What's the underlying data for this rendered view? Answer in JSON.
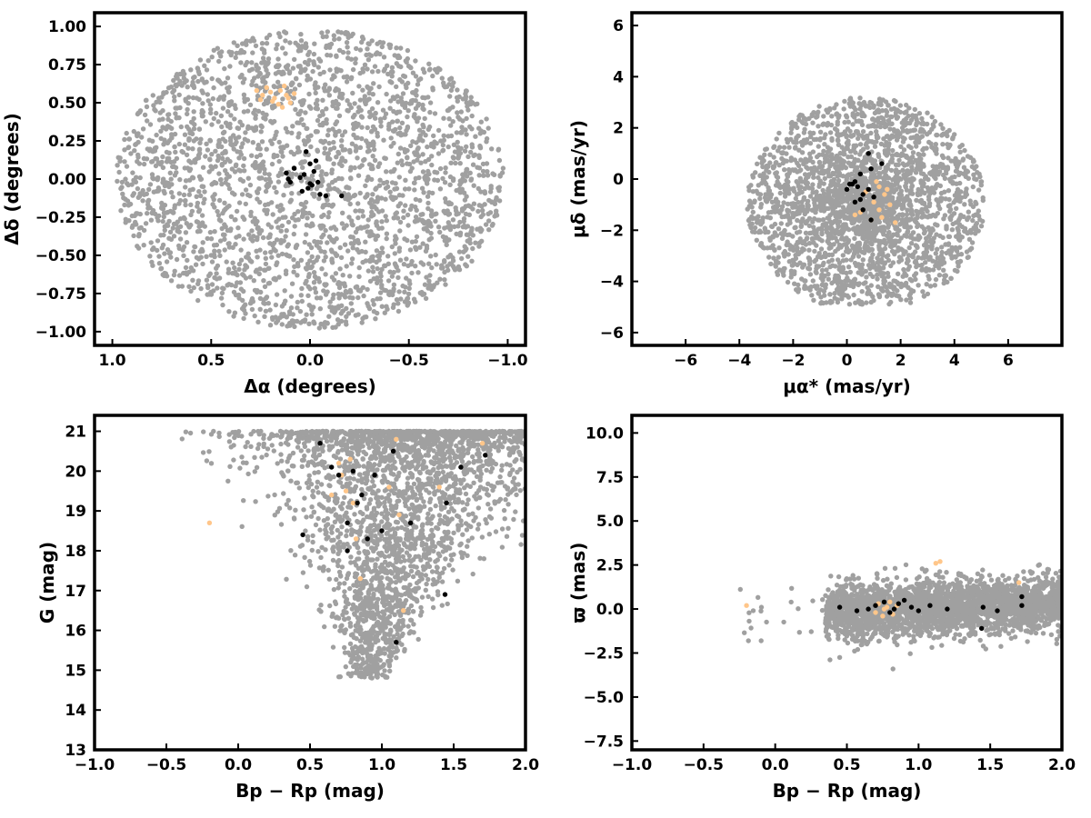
{
  "chart_data": [
    {
      "id": "pos",
      "type": "scatter",
      "xlabel": "Δα (degrees)",
      "ylabel": "Δδ (degrees)",
      "xlim": [
        1.09,
        -1.09
      ],
      "ylim": [
        -1.09,
        1.09
      ],
      "xticks": [
        1.0,
        0.5,
        0.0,
        -0.5,
        -1.0
      ],
      "xtick_labels": [
        "1.0",
        "0.5",
        "0.0",
        "−0.5",
        "−1.0"
      ],
      "yticks": [
        -1.0,
        -0.75,
        -0.5,
        -0.25,
        0.0,
        0.25,
        0.5,
        0.75,
        1.0
      ],
      "ytick_labels": [
        "−1.00",
        "−0.75",
        "−0.50",
        "−0.25",
        "0.00",
        "0.25",
        "0.50",
        "0.75",
        "1.00"
      ],
      "background": {
        "color": "#a0a0a0",
        "count": 2600,
        "shape": "disk",
        "center": [
          0,
          0
        ],
        "radius": 0.98,
        "seed": 11
      },
      "series": [
        {
          "color": "#ffc68a",
          "points": [
            [
              0.12,
              0.55
            ],
            [
              0.1,
              0.5
            ],
            [
              0.15,
              0.58
            ],
            [
              0.18,
              0.53
            ],
            [
              0.22,
              0.6
            ],
            [
              0.25,
              0.52
            ],
            [
              0.08,
              0.56
            ],
            [
              0.13,
              0.61
            ],
            [
              0.2,
              0.57
            ],
            [
              0.16,
              0.49
            ],
            [
              0.24,
              0.55
            ],
            [
              0.11,
              0.53
            ],
            [
              0.19,
              0.51
            ],
            [
              0.27,
              0.58
            ],
            [
              0.14,
              0.47
            ]
          ]
        },
        {
          "color": "#000000",
          "points": [
            [
              0.02,
              0.18
            ],
            [
              -0.03,
              0.12
            ],
            [
              0.0,
              0.1
            ],
            [
              -0.02,
              0.05
            ],
            [
              0.03,
              0.03
            ],
            [
              0.05,
              0.01
            ],
            [
              0.1,
              -0.02
            ],
            [
              0.12,
              0.04
            ],
            [
              0.08,
              0.07
            ],
            [
              -0.01,
              -0.04
            ],
            [
              0.01,
              -0.06
            ],
            [
              0.04,
              -0.08
            ],
            [
              -0.05,
              -0.1
            ],
            [
              -0.08,
              -0.11
            ],
            [
              -0.16,
              -0.11
            ],
            [
              0.11,
              0.0
            ],
            [
              -0.04,
              -0.02
            ],
            [
              0.0,
              -0.03
            ]
          ]
        }
      ]
    },
    {
      "id": "pm",
      "type": "scatter",
      "xlabel": "μα* (mas/yr)",
      "ylabel": "μδ (mas/yr)",
      "xlim": [
        -8,
        8
      ],
      "ylim": [
        -6.5,
        6.5
      ],
      "xticks": [
        -6,
        -4,
        -2,
        0,
        2,
        4,
        6
      ],
      "xtick_labels": [
        "−6",
        "−4",
        "−2",
        "0",
        "2",
        "4",
        "6"
      ],
      "yticks": [
        -6,
        -4,
        -2,
        0,
        2,
        4,
        6
      ],
      "ytick_labels": [
        "−6",
        "−4",
        "−2",
        "0",
        "2",
        "4",
        "6"
      ],
      "background": {
        "color": "#a0a0a0",
        "count": 2600,
        "shape": "pm",
        "center": [
          0.7,
          -1.0
        ],
        "radius": 4.2,
        "seed": 23
      },
      "series": [
        {
          "color": "#ffc68a",
          "points": [
            [
              1.2,
              -0.3
            ],
            [
              1.4,
              -0.6
            ],
            [
              1.6,
              -1.0
            ],
            [
              1.3,
              -1.5
            ],
            [
              0.9,
              -1.6
            ],
            [
              0.5,
              -1.3
            ],
            [
              1.1,
              -0.1
            ],
            [
              1.5,
              -0.4
            ],
            [
              1.0,
              -0.9
            ],
            [
              0.3,
              -1.4
            ],
            [
              1.8,
              -1.7
            ],
            [
              1.2,
              -1.2
            ],
            [
              0.7,
              -0.5
            ]
          ]
        },
        {
          "color": "#000000",
          "points": [
            [
              0.8,
              1.0
            ],
            [
              0.9,
              0.4
            ],
            [
              0.5,
              0.2
            ],
            [
              0.3,
              -0.1
            ],
            [
              0.1,
              -0.2
            ],
            [
              0.0,
              -0.4
            ],
            [
              0.4,
              -0.3
            ],
            [
              0.6,
              -0.6
            ],
            [
              0.5,
              -0.8
            ],
            [
              0.3,
              -0.9
            ],
            [
              0.6,
              -1.2
            ],
            [
              0.9,
              -1.6
            ],
            [
              1.3,
              0.6
            ],
            [
              0.8,
              -0.4
            ],
            [
              1.0,
              -0.7
            ],
            [
              0.2,
              -0.2
            ]
          ]
        }
      ]
    },
    {
      "id": "cmd",
      "type": "scatter",
      "xlabel": "Bp − Rp (mag)",
      "ylabel": "G (mag)",
      "xlim": [
        -1.0,
        2.0
      ],
      "ylim": [
        13.0,
        21.4
      ],
      "xticks": [
        -1.0,
        -0.5,
        0.0,
        0.5,
        1.0,
        1.5,
        2.0
      ],
      "xtick_labels": [
        "−1.0",
        "−0.5",
        "0.0",
        "0.5",
        "1.0",
        "1.5",
        "2.0"
      ],
      "yticks": [
        13,
        14,
        15,
        16,
        17,
        18,
        19,
        20,
        21
      ],
      "ytick_labels": [
        "13",
        "14",
        "15",
        "16",
        "17",
        "18",
        "19",
        "20",
        "21"
      ],
      "background": {
        "color": "#a0a0a0",
        "count": 2600,
        "shape": "cmd",
        "seed": 37
      },
      "series": [
        {
          "color": "#ffc68a",
          "points": [
            [
              -0.2,
              18.7
            ],
            [
              0.65,
              19.4
            ],
            [
              0.7,
              20.2
            ],
            [
              0.72,
              19.9
            ],
            [
              0.75,
              19.5
            ],
            [
              0.78,
              20.3
            ],
            [
              0.8,
              19.2
            ],
            [
              0.82,
              18.3
            ],
            [
              0.85,
              17.3
            ],
            [
              1.05,
              19.6
            ],
            [
              1.1,
              20.8
            ],
            [
              1.12,
              18.9
            ],
            [
              1.15,
              16.5
            ],
            [
              1.4,
              19.6
            ],
            [
              1.7,
              20.7
            ]
          ]
        },
        {
          "color": "#000000",
          "points": [
            [
              0.45,
              18.4
            ],
            [
              0.57,
              20.7
            ],
            [
              0.65,
              20.1
            ],
            [
              0.7,
              19.9
            ],
            [
              0.76,
              18.7
            ],
            [
              0.76,
              18.0
            ],
            [
              0.8,
              20.0
            ],
            [
              0.83,
              19.2
            ],
            [
              0.86,
              19.4
            ],
            [
              0.9,
              18.3
            ],
            [
              0.95,
              19.9
            ],
            [
              1.0,
              18.5
            ],
            [
              1.08,
              20.5
            ],
            [
              1.1,
              15.7
            ],
            [
              1.2,
              18.7
            ],
            [
              1.44,
              16.9
            ],
            [
              1.45,
              19.2
            ],
            [
              1.55,
              20.1
            ],
            [
              1.72,
              20.4
            ]
          ]
        }
      ]
    },
    {
      "id": "plx",
      "type": "scatter",
      "xlabel": "Bp − Rp (mag)",
      "ylabel": "ϖ (mas)",
      "xlim": [
        -1.0,
        2.0
      ],
      "ylim": [
        -8.0,
        11.0
      ],
      "xticks": [
        -1.0,
        -0.5,
        0.0,
        0.5,
        1.0,
        1.5,
        2.0
      ],
      "xtick_labels": [
        "−1.0",
        "−0.5",
        "0.0",
        "0.5",
        "1.0",
        "1.5",
        "2.0"
      ],
      "yticks": [
        -7.5,
        -5.0,
        -2.5,
        0.0,
        2.5,
        5.0,
        7.5,
        10.0
      ],
      "ytick_labels": [
        "−7.5",
        "−5.0",
        "−2.5",
        "0.0",
        "2.5",
        "5.0",
        "7.5",
        "10.0"
      ],
      "background": {
        "color": "#a0a0a0",
        "count": 2600,
        "shape": "plx",
        "seed": 53
      },
      "series": [
        {
          "color": "#ffc68a",
          "points": [
            [
              -0.2,
              0.2
            ],
            [
              0.7,
              -0.2
            ],
            [
              0.72,
              0.3
            ],
            [
              0.75,
              -0.4
            ],
            [
              0.78,
              0.1
            ],
            [
              0.8,
              0.4
            ],
            [
              0.82,
              -0.3
            ],
            [
              0.85,
              0.2
            ],
            [
              1.12,
              2.6
            ],
            [
              1.15,
              2.7
            ],
            [
              1.7,
              1.5
            ],
            [
              0.76,
              0.0
            ]
          ]
        },
        {
          "color": "#000000",
          "points": [
            [
              0.45,
              0.1
            ],
            [
              0.57,
              -0.1
            ],
            [
              0.65,
              0.0
            ],
            [
              0.7,
              0.2
            ],
            [
              0.76,
              0.4
            ],
            [
              0.8,
              -0.2
            ],
            [
              0.83,
              0.0
            ],
            [
              0.86,
              0.3
            ],
            [
              0.9,
              0.5
            ],
            [
              0.95,
              0.1
            ],
            [
              1.0,
              -0.1
            ],
            [
              1.08,
              0.2
            ],
            [
              1.2,
              0.0
            ],
            [
              1.44,
              -1.1
            ],
            [
              1.45,
              0.1
            ],
            [
              1.55,
              -0.1
            ],
            [
              1.72,
              0.2
            ],
            [
              1.72,
              0.7
            ]
          ]
        }
      ]
    }
  ]
}
